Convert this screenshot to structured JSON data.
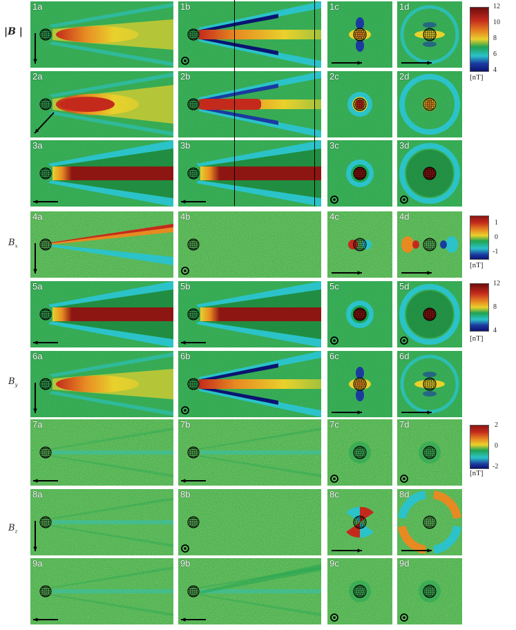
{
  "row_labels": {
    "B_mag": {
      "prefix": "|",
      "symbol": "B",
      "suffix": " |"
    },
    "Bx": {
      "symbol": "B",
      "sub": "x"
    },
    "By": {
      "symbol": "B",
      "sub": "y"
    },
    "Bz": {
      "symbol": "B",
      "sub": "z"
    }
  },
  "panels": [
    {
      "id": "1a",
      "row": 1,
      "col": "a",
      "type": "wake",
      "scheme": "mag_oblique",
      "dir": "down"
    },
    {
      "id": "1b",
      "row": 1,
      "col": "b",
      "type": "wake",
      "scheme": "mag_split",
      "dir": "out"
    },
    {
      "id": "1c",
      "row": 1,
      "col": "c",
      "type": "ring",
      "scheme": "small_dipole",
      "dir": "right"
    },
    {
      "id": "1d",
      "row": 1,
      "col": "d",
      "type": "ring",
      "scheme": "ring_oblique",
      "dir": "right"
    },
    {
      "id": "2a",
      "row": 2,
      "col": "a",
      "type": "wake",
      "scheme": "mag_strong",
      "dir": "downleft"
    },
    {
      "id": "2b",
      "row": 2,
      "col": "b",
      "type": "wake",
      "scheme": "mag_split2",
      "dir": "none"
    },
    {
      "id": "2c",
      "row": 2,
      "col": "c",
      "type": "ring",
      "scheme": "small_cyan",
      "dir": "none"
    },
    {
      "id": "2d",
      "row": 2,
      "col": "d",
      "type": "ring",
      "scheme": "ring_cyan",
      "dir": "none"
    },
    {
      "id": "3a",
      "row": 3,
      "col": "a",
      "type": "wake",
      "scheme": "mag_parallel",
      "dir": "left"
    },
    {
      "id": "3b",
      "row": 3,
      "col": "b",
      "type": "wake",
      "scheme": "mag_parallel",
      "dir": "left"
    },
    {
      "id": "3c",
      "row": 3,
      "col": "c",
      "type": "ring",
      "scheme": "small_red",
      "dir": "out"
    },
    {
      "id": "3d",
      "row": 3,
      "col": "d",
      "type": "ring",
      "scheme": "ring_red",
      "dir": "out"
    },
    {
      "id": "4a",
      "row": 4,
      "col": "a",
      "type": "wake",
      "scheme": "bx_oblique",
      "dir": "down"
    },
    {
      "id": "4b",
      "row": 4,
      "col": "b",
      "type": "wake",
      "scheme": "noise",
      "dir": "out"
    },
    {
      "id": "4c",
      "row": 4,
      "col": "c",
      "type": "ring",
      "scheme": "bx_small",
      "dir": "right"
    },
    {
      "id": "4d",
      "row": 4,
      "col": "d",
      "type": "ring",
      "scheme": "bx_ring",
      "dir": "right"
    },
    {
      "id": "5a",
      "row": 5,
      "col": "a",
      "type": "wake",
      "scheme": "mag_parallel",
      "dir": "left"
    },
    {
      "id": "5b",
      "row": 5,
      "col": "b",
      "type": "wake",
      "scheme": "mag_parallel",
      "dir": "left"
    },
    {
      "id": "5c",
      "row": 5,
      "col": "c",
      "type": "ring",
      "scheme": "small_red",
      "dir": "out"
    },
    {
      "id": "5d",
      "row": 5,
      "col": "d",
      "type": "ring",
      "scheme": "ring_red",
      "dir": "out"
    },
    {
      "id": "6a",
      "row": 6,
      "col": "a",
      "type": "wake",
      "scheme": "mag_oblique",
      "dir": "down"
    },
    {
      "id": "6b",
      "row": 6,
      "col": "b",
      "type": "wake",
      "scheme": "mag_split",
      "dir": "out"
    },
    {
      "id": "6c",
      "row": 6,
      "col": "c",
      "type": "ring",
      "scheme": "small_dipole",
      "dir": "right"
    },
    {
      "id": "6d",
      "row": 6,
      "col": "d",
      "type": "ring",
      "scheme": "ring_oblique",
      "dir": "right"
    },
    {
      "id": "7a",
      "row": 7,
      "col": "a",
      "type": "wake",
      "scheme": "faint",
      "dir": "left"
    },
    {
      "id": "7b",
      "row": 7,
      "col": "b",
      "type": "wake",
      "scheme": "faint",
      "dir": "left"
    },
    {
      "id": "7c",
      "row": 7,
      "col": "c",
      "type": "ring",
      "scheme": "faint_small",
      "dir": "out"
    },
    {
      "id": "7d",
      "row": 7,
      "col": "d",
      "type": "ring",
      "scheme": "faint_small",
      "dir": "out"
    },
    {
      "id": "8a",
      "row": 8,
      "col": "a",
      "type": "wake",
      "scheme": "faint",
      "dir": "down"
    },
    {
      "id": "8b",
      "row": 8,
      "col": "b",
      "type": "wake",
      "scheme": "noise",
      "dir": "out"
    },
    {
      "id": "8c",
      "row": 8,
      "col": "c",
      "type": "ring",
      "scheme": "bz_small",
      "dir": "right"
    },
    {
      "id": "8d",
      "row": 8,
      "col": "d",
      "type": "ring",
      "scheme": "bz_ring",
      "dir": "right"
    },
    {
      "id": "9a",
      "row": 9,
      "col": "a",
      "type": "wake",
      "scheme": "faint",
      "dir": "left"
    },
    {
      "id": "9b",
      "row": 9,
      "col": "b",
      "type": "wake",
      "scheme": "faint_oblique",
      "dir": "left"
    },
    {
      "id": "9c",
      "row": 9,
      "col": "c",
      "type": "ring",
      "scheme": "faint_small",
      "dir": "out"
    },
    {
      "id": "9d",
      "row": 9,
      "col": "d",
      "type": "ring",
      "scheme": "faint_small",
      "dir": "out"
    }
  ],
  "colorbars": [
    {
      "id": "cbar-magnitude",
      "ticks": [
        "12",
        "10",
        "8",
        "6",
        "4"
      ],
      "unit": "[nT]"
    },
    {
      "id": "cbar-bx",
      "ticks": [
        "1",
        "0",
        "-1"
      ],
      "unit": "[nT]"
    },
    {
      "id": "cbar-by",
      "ticks": [
        "12",
        "8",
        "4"
      ],
      "unit": "[nT]"
    },
    {
      "id": "cbar-bz",
      "ticks": [
        "2",
        "0",
        "-2"
      ],
      "unit": "[nT]"
    }
  ],
  "colors": {
    "green": "#1fa352",
    "dark_green": "#137a36",
    "yellow": "#e9d12c",
    "orange": "#e78a22",
    "red": "#c42a1c",
    "dark_red": "#8d1612",
    "cyan": "#2bc3c9",
    "blue": "#1b3aa0",
    "navy": "#0b1470"
  }
}
